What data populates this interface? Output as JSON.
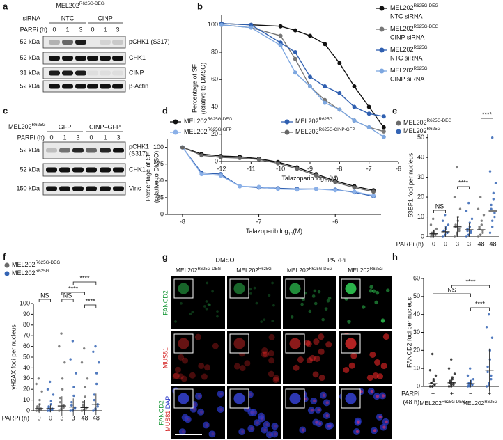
{
  "blots": [
    {
      "panel": "a",
      "header": {
        "base": "MEL202",
        "sup": "R625G-DEG"
      },
      "sirna_label": "siRNA",
      "groups": [
        "NTC",
        "CINP"
      ],
      "parpi_label": "PARPi (h)",
      "lanes": [
        "0",
        "1",
        "3",
        "0",
        "1",
        "3"
      ],
      "rows": [
        {
          "kda": "52 kDa",
          "label": "pCHK1 (S317)"
        },
        {
          "kda": "52 kDa",
          "label": "CHK1"
        },
        {
          "kda": "31 kDa",
          "label": "CINP"
        },
        {
          "kda": "52 kDa",
          "label": "β-Actin"
        }
      ]
    },
    {
      "panel": "c",
      "header": {
        "base": "MEL202",
        "sup": "R625G"
      },
      "groups": [
        "GFP",
        "CINP–GFP"
      ],
      "parpi_label": "PARPi (h)",
      "lanes": [
        "0",
        "1",
        "3",
        "0",
        "1",
        "3"
      ],
      "rows": [
        {
          "kda": "52 kDa",
          "label": [
            "pCHK1",
            "(S317)"
          ]
        },
        {
          "kda": "52 kDa",
          "label": "CHK1"
        },
        {
          "kda": "150 kDa",
          "label": "Vinc"
        }
      ]
    }
  ],
  "microscopy": {
    "panel": "g",
    "conditions": [
      "DMSO",
      "PARPi"
    ],
    "columns": [
      {
        "base": "MEL202",
        "sup": "R625G-DEG"
      },
      {
        "base": "MEL202",
        "sup": "R625G"
      },
      {
        "base": "MEL202",
        "sup": "R625G-DEG"
      },
      {
        "base": "MEL202",
        "sup": "R625G"
      }
    ],
    "rows": [
      "FANCD2",
      "MUS81",
      [
        "FANCD2",
        "MUS81",
        "DAPI"
      ]
    ]
  },
  "chart_data": [
    {
      "panel": "b",
      "type": "line",
      "ylabel": [
        "Percentage of SF",
        "(relative to DMSO)"
      ],
      "xlabel": {
        "base": "Talazoparib log",
        "sub": "10",
        "tail": "(M)"
      },
      "x": [
        -12,
        -11,
        -10,
        -9.5,
        -9,
        -8.5,
        -8,
        -7.5,
        -7,
        -6.5
      ],
      "xlim": [
        -12,
        -6
      ],
      "xticks": [
        -12,
        -11,
        -10,
        -9,
        -8,
        -7,
        -6
      ],
      "ylim": [
        0,
        107
      ],
      "yticks": [
        0,
        20,
        40,
        60,
        80,
        100
      ],
      "legend": "right",
      "series": [
        {
          "name": {
            "base": "MEL202",
            "sup": "R625G-DEG",
            "line2": "NTC siRNA"
          },
          "color": "#111111",
          "values": [
            101,
            100,
            99,
            96,
            92,
            86,
            72,
            55,
            40,
            25
          ]
        },
        {
          "name": {
            "base": "MEL202",
            "sup": "R625G-DEG",
            "line2": "CINP siRNA"
          },
          "color": "#777777",
          "values": [
            100,
            98,
            92,
            75,
            55,
            45,
            38,
            30,
            25,
            22
          ]
        },
        {
          "name": {
            "base": "MEL202",
            "sup": "R625G",
            "line2": "NTC siRNA"
          },
          "color": "#2f5fb0",
          "values": [
            101,
            100,
            87,
            80,
            62,
            55,
            50,
            40,
            35,
            33
          ]
        },
        {
          "name": {
            "base": "MEL202",
            "sup": "R625G",
            "line2": "CINP siRNA"
          },
          "color": "#7da7e0",
          "values": [
            100,
            98,
            85,
            65,
            55,
            43,
            38,
            30,
            25,
            18
          ]
        }
      ]
    },
    {
      "panel": "d",
      "type": "line",
      "ylabel": [
        "Percentage of SF",
        "(relative to DMSO)"
      ],
      "xlabel": {
        "base": "Talazoparib log",
        "sub": "10",
        "tail": "(M)"
      },
      "x": [
        -8,
        -7.75,
        -7.5,
        -7.25,
        -7,
        -6.75,
        -6.5,
        -6.25,
        -6,
        -5.75,
        -5.5
      ],
      "xlim": [
        -8.2,
        -5.4
      ],
      "xticks": [
        -8,
        -7,
        -6
      ],
      "ylim": [
        0,
        112
      ],
      "yticks": [
        0,
        25,
        50,
        75,
        100
      ],
      "legend": "top",
      "series": [
        {
          "name": {
            "base": "MEL202",
            "sup": "R625G-DEG"
          },
          "color": "#111111",
          "values": [
            100,
            90,
            87,
            86,
            83,
            78,
            70,
            60,
            50,
            42,
            36
          ]
        },
        {
          "name": {
            "base": "MEL202",
            "sup": "R625G"
          },
          "color": "#2f5fb0",
          "values": [
            100,
            62,
            60,
            42,
            40,
            39,
            38,
            38,
            37,
            33,
            27
          ]
        },
        {
          "name": {
            "base": "MEL202",
            "sup": "R625G-GFP"
          },
          "color": "#8ab0e8",
          "values": [
            100,
            60,
            58,
            42,
            41,
            38,
            37,
            38,
            36,
            34,
            28
          ]
        },
        {
          "name": {
            "base": "MEL202",
            "sup": "R625G-CINP-GFP"
          },
          "color": "#666666",
          "values": [
            100,
            88,
            85,
            84,
            82,
            76,
            68,
            58,
            48,
            40,
            34
          ]
        }
      ]
    },
    {
      "panel": "e",
      "type": "strip",
      "ylabel": "53BP1 foci per nucleus",
      "xlabel": "PARPi (h)",
      "categories": [
        "0",
        "0",
        "3",
        "3",
        "48",
        "48"
      ],
      "ylim": [
        0,
        52
      ],
      "yticks": [
        0,
        10,
        20,
        30,
        40,
        50
      ],
      "legend": "top-left",
      "series": [
        {
          "name": {
            "base": "MEL202",
            "sup": "R625G-DEG"
          },
          "color": "#6b6b6b",
          "values": [
            [
              0,
              0,
              0,
              1,
              1,
              1,
              2,
              2,
              3,
              4,
              6,
              9
            ],
            null,
            [
              0,
              1,
              2,
              3,
              4,
              5,
              6,
              8,
              10,
              14,
              20,
              35
            ],
            null,
            [
              0,
              1,
              1,
              2,
              3,
              4,
              5,
              6,
              8,
              11,
              14,
              20
            ],
            null
          ],
          "means": [
            1.5,
            null,
            5,
            null,
            3.5,
            null
          ],
          "sds": [
            2,
            null,
            5,
            null,
            4,
            null
          ]
        },
        {
          "name": {
            "base": "MEL202",
            "sup": "R625G"
          },
          "color": "#3464b4",
          "values": [
            null,
            [
              0,
              1,
              1,
              2,
              2,
              3,
              3,
              4,
              5,
              6,
              8,
              11
            ],
            null,
            [
              0,
              1,
              1,
              2,
              3,
              3,
              4,
              5,
              7,
              9,
              13,
              17
            ],
            null,
            [
              2,
              5,
              8,
              10,
              12,
              14,
              16,
              19,
              22,
              27,
              33,
              50
            ]
          ],
          "means": [
            null,
            2.5,
            null,
            3.5,
            null,
            13
          ],
          "sds": [
            null,
            2.5,
            null,
            3.5,
            null,
            9
          ]
        }
      ],
      "annotations": [
        {
          "text": "NS",
          "between": [
            0,
            1
          ]
        },
        {
          "text": "****",
          "between": [
            2,
            3
          ]
        },
        {
          "text": "****",
          "between": [
            4,
            5
          ]
        }
      ]
    },
    {
      "panel": "f",
      "type": "strip",
      "ylabel": "γH2AX foci per nucleus",
      "xlabel": "PARPi (h)",
      "categories": [
        "0",
        "0",
        "3",
        "3",
        "48",
        "48"
      ],
      "ylim": [
        0,
        100
      ],
      "yticks": [
        0,
        10,
        20,
        30,
        40,
        50,
        60,
        70,
        80,
        90,
        100
      ],
      "legend": "top-left",
      "series": [
        {
          "name": {
            "base": "MEL202",
            "sup": "R625G-DEG"
          },
          "color": "#6b6b6b",
          "values": [
            [
              0,
              0,
              1,
              1,
              2,
              3,
              4,
              6,
              10,
              18,
              25,
              30
            ],
            null,
            [
              0,
              1,
              2,
              3,
              5,
              8,
              12,
              20,
              30,
              45,
              60,
              72
            ],
            null,
            [
              0,
              1,
              1,
              2,
              3,
              5,
              8,
              13,
              22,
              30,
              45,
              58
            ],
            null
          ],
          "means": [
            2,
            null,
            4.5,
            null,
            3,
            null
          ],
          "sds": [
            4,
            null,
            9,
            null,
            7,
            null
          ]
        },
        {
          "name": {
            "base": "MEL202",
            "sup": "R625G"
          },
          "color": "#3464b4",
          "values": [
            null,
            [
              0,
              0,
              1,
              1,
              2,
              3,
              4,
              6,
              9,
              15,
              20,
              27
            ],
            null,
            [
              0,
              0,
              1,
              2,
              3,
              5,
              8,
              14,
              22,
              35,
              48,
              65
            ],
            null,
            [
              0,
              1,
              2,
              4,
              6,
              10,
              15,
              25,
              35,
              45,
              55,
              60
            ]
          ],
          "means": [
            null,
            2,
            null,
            3.5,
            null,
            6
          ],
          "sds": [
            null,
            3.5,
            null,
            8,
            null,
            10
          ]
        }
      ],
      "annotations": [
        {
          "text": "NS",
          "between": [
            0,
            1
          ]
        },
        {
          "text": "NS",
          "between": [
            2,
            3
          ]
        },
        {
          "text": "****",
          "between": [
            4,
            5
          ]
        },
        {
          "text": "****",
          "between": [
            2,
            4
          ]
        },
        {
          "text": "****",
          "between": [
            3,
            5
          ]
        }
      ]
    },
    {
      "panel": "h",
      "type": "strip",
      "ylabel": "FANCD2 foci per nucleus",
      "xlabel": [
        "PARPi",
        "(48 h)"
      ],
      "categories": [
        "−",
        "+",
        "−",
        "+"
      ],
      "ylim": [
        0,
        60
      ],
      "yticks": [
        0,
        10,
        20,
        30,
        40,
        50,
        60
      ],
      "legend": "below",
      "series": [
        {
          "name": {
            "base": "MEL202",
            "sup": "R625G-DEG"
          },
          "color": "#222222",
          "values": [
            [
              0,
              0,
              0,
              1,
              1,
              2,
              2,
              3,
              4,
              6,
              9,
              18
            ],
            [
              0,
              0,
              1,
              1,
              2,
              2,
              3,
              4,
              5,
              7,
              10,
              15
            ],
            null,
            null
          ],
          "means": [
            1.5,
            2,
            null,
            null
          ],
          "sds": [
            2,
            2.5,
            null,
            null
          ]
        },
        {
          "name": {
            "base": "MEL202",
            "sup": "R625G"
          },
          "color": "#3464b4",
          "values": [
            null,
            null,
            [
              0,
              0,
              0,
              1,
              1,
              1,
              2,
              2,
              3,
              4,
              6,
              10
            ],
            [
              0,
              1,
              2,
              4,
              6,
              8,
              11,
              15,
              20,
              27,
              33,
              40
            ]
          ],
          "means": [
            null,
            null,
            1.5,
            9
          ],
          "sds": [
            null,
            null,
            2,
            12
          ]
        }
      ],
      "annotations": [
        {
          "text": "NS",
          "between": [
            0,
            2
          ]
        },
        {
          "text": "****",
          "between": [
            1,
            3
          ]
        },
        {
          "text": "****",
          "between": [
            2,
            3
          ]
        }
      ]
    }
  ]
}
